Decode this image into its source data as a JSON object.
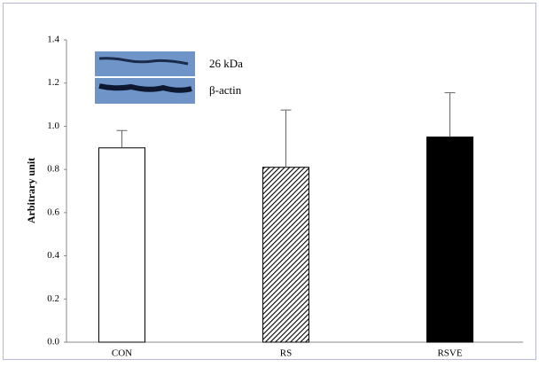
{
  "chart_data": {
    "type": "bar",
    "y_label": "Arbitrary unit",
    "categories": [
      "CON",
      "RS",
      "RSVE"
    ],
    "values": [
      0.9,
      0.81,
      0.95
    ],
    "errors": [
      0.08,
      0.265,
      0.205
    ],
    "fills": [
      "white",
      "hatched",
      "black"
    ],
    "ylim": [
      0,
      1.4
    ],
    "yticks": [
      {
        "value": 0,
        "label": "0.0"
      },
      0.2,
      0.4,
      0.6,
      0.8,
      {
        "value": 1,
        "label": "1.0"
      },
      1.2,
      1.4
    ],
    "annotations": [
      "26 kDa",
      "β-actin"
    ]
  }
}
